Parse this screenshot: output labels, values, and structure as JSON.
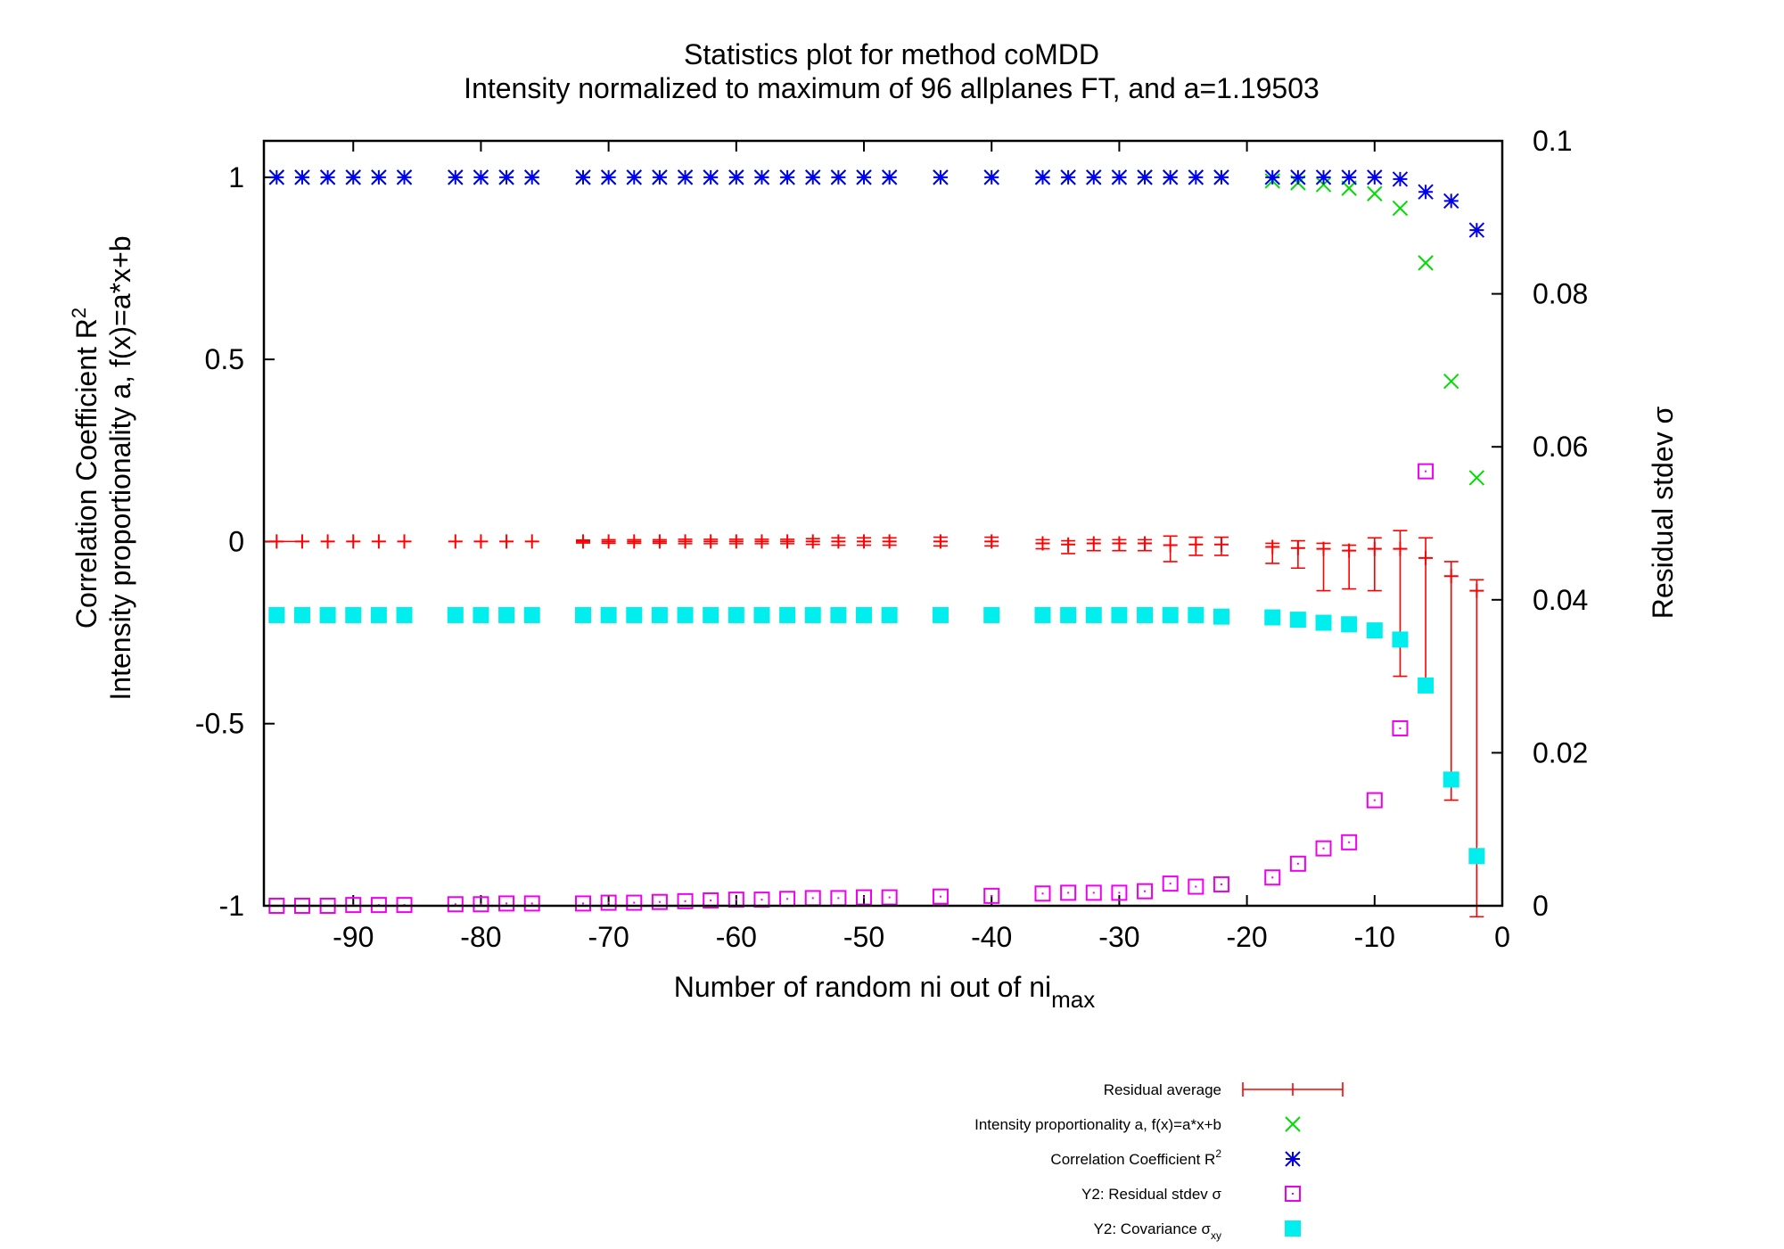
{
  "chart_data": {
    "type": "scatter",
    "title": "Statistics plot for method coMDD",
    "subtitle": "Intensity normalized to maximum of 96 allplanes FT, and a=1.19503",
    "xlabel": {
      "main": "Number of random ni out of ni",
      "sub": "max"
    },
    "ylabel": {
      "line1_main": "Correlation Coefficient R",
      "line1_sup": "2",
      "line2": "Intensity proportionality a, f(x)=a*x+b"
    },
    "y2label": "Residual stdev σ",
    "xlim": [
      -97,
      0
    ],
    "ylim": [
      -1,
      1.1
    ],
    "y2lim": [
      0,
      0.1
    ],
    "xticks": [
      -90,
      -80,
      -70,
      -60,
      -50,
      -40,
      -30,
      -20,
      -10,
      0
    ],
    "xtick_labels": [
      "-90",
      "-80",
      "-70",
      "-60",
      "-50",
      "-40",
      "-30",
      "-20",
      "-10",
      "0"
    ],
    "yticks": [
      -1,
      -0.5,
      0,
      0.5,
      1
    ],
    "ytick_labels": [
      "-1",
      "-0.5",
      "0",
      "0.5",
      "1"
    ],
    "y2ticks": [
      0,
      0.02,
      0.04,
      0.06,
      0.08,
      0.1
    ],
    "y2tick_labels": [
      "0",
      "0.02",
      "0.04",
      "0.06",
      "0.08",
      "0.1"
    ],
    "grid": false,
    "legend_position": "bottom-right below plot",
    "x": [
      -96,
      -94,
      -92,
      -90,
      -88,
      -86,
      -82,
      -80,
      -78,
      -76,
      -72,
      -70,
      -68,
      -66,
      -64,
      -62,
      -60,
      -58,
      -56,
      -54,
      -52,
      -50,
      -48,
      -44,
      -40,
      -36,
      -34,
      -32,
      -30,
      -28,
      -26,
      -24,
      -22,
      -18,
      -16,
      -14,
      -12,
      -10,
      -8,
      -6,
      -4,
      -2
    ],
    "series": [
      {
        "name": "Residual average",
        "axis": "y1",
        "marker": "plus-errorbar",
        "color": "#ff0000",
        "values": [
          0,
          0,
          0,
          0,
          0,
          0,
          0,
          0,
          0,
          0,
          0,
          0,
          0,
          0,
          0,
          0,
          0,
          0,
          0,
          0,
          0,
          0,
          0,
          0,
          0,
          -0.005,
          -0.008,
          -0.005,
          -0.005,
          -0.005,
          -0.01,
          -0.008,
          -0.008,
          -0.015,
          -0.018,
          -0.02,
          -0.025,
          -0.02,
          -0.02,
          -0.045,
          -0.095,
          -0.135
        ],
        "err_low": [
          0,
          0,
          0,
          0,
          0,
          0,
          0,
          0,
          0,
          0,
          -0.004,
          -0.005,
          -0.005,
          -0.005,
          -0.006,
          -0.006,
          -0.006,
          -0.006,
          -0.006,
          -0.008,
          -0.01,
          -0.01,
          -0.01,
          -0.012,
          -0.012,
          -0.015,
          -0.025,
          -0.02,
          -0.02,
          -0.02,
          -0.045,
          -0.03,
          -0.03,
          -0.045,
          -0.055,
          -0.115,
          -0.105,
          -0.115,
          -0.35,
          -0.35,
          -0.615,
          -0.895
        ],
        "err_high": [
          0,
          0,
          0,
          0,
          0,
          0,
          0,
          0,
          0,
          0,
          0.004,
          0.005,
          0.005,
          0.005,
          0.006,
          0.006,
          0.006,
          0.006,
          0.006,
          0.008,
          0.01,
          0.01,
          0.01,
          0.012,
          0.012,
          0.01,
          0.01,
          0.01,
          0.01,
          0.01,
          0.025,
          0.02,
          0.02,
          0.01,
          0.02,
          0.015,
          0.015,
          0.03,
          0.05,
          0.055,
          0.04,
          0.03
        ]
      },
      {
        "name": "Intensity proportionality a, f(x)=a*x+b",
        "axis": "y1",
        "marker": "x",
        "color": "#00dd00",
        "values": [
          1,
          1,
          1,
          1,
          1,
          1,
          1,
          1,
          1,
          1,
          1,
          1,
          1,
          1,
          1,
          1,
          1,
          1,
          1,
          1,
          1,
          1,
          1,
          1,
          1,
          1,
          1,
          1,
          1,
          1,
          1,
          1,
          1,
          0.99,
          0.985,
          0.98,
          0.97,
          0.955,
          0.915,
          0.765,
          0.44,
          0.175
        ]
      },
      {
        "name": "Correlation Coefficient R",
        "name_sup": "2",
        "axis": "y1",
        "marker": "star",
        "color": "#0000ee",
        "values": [
          1,
          1,
          1,
          1,
          1,
          1,
          1,
          1,
          1,
          1,
          1,
          1,
          1,
          1,
          1,
          1,
          1,
          1,
          1,
          1,
          1,
          1,
          1,
          1,
          1,
          1,
          1,
          1,
          1,
          1,
          1,
          1,
          1,
          1,
          1,
          1,
          1,
          1,
          0.995,
          0.96,
          0.935,
          0.855
        ]
      },
      {
        "name": "Y2: Residual stdev σ",
        "axis": "y2",
        "marker": "open-square-dot",
        "color": "#ee00ee",
        "values": [
          0,
          0,
          0,
          0.0001,
          0.0001,
          0.0001,
          0.0002,
          0.0002,
          0.0003,
          0.0003,
          0.0003,
          0.0004,
          0.0004,
          0.0005,
          0.0006,
          0.0007,
          0.0008,
          0.0008,
          0.0009,
          0.001,
          0.001,
          0.0011,
          0.0011,
          0.0012,
          0.0013,
          0.0016,
          0.0017,
          0.0017,
          0.0017,
          0.0019,
          0.0029,
          0.0025,
          0.0028,
          0.0037,
          0.0055,
          0.0075,
          0.0083,
          0.0138,
          0.0232,
          0.0568,
          null,
          null
        ]
      },
      {
        "name": "Y2: Covariance σ",
        "name_sub": "xy",
        "axis": "y2",
        "marker": "filled-square",
        "color": "#00eeee",
        "values": [
          0.038,
          0.038,
          0.038,
          0.038,
          0.038,
          0.038,
          0.038,
          0.038,
          0.038,
          0.038,
          0.038,
          0.038,
          0.038,
          0.038,
          0.038,
          0.038,
          0.038,
          0.038,
          0.038,
          0.038,
          0.038,
          0.038,
          0.038,
          0.038,
          0.038,
          0.038,
          0.038,
          0.038,
          0.038,
          0.038,
          0.038,
          0.038,
          0.0378,
          0.0377,
          0.0374,
          0.037,
          0.0368,
          0.036,
          0.0348,
          0.0288,
          0.0165,
          0.0065
        ]
      }
    ]
  }
}
